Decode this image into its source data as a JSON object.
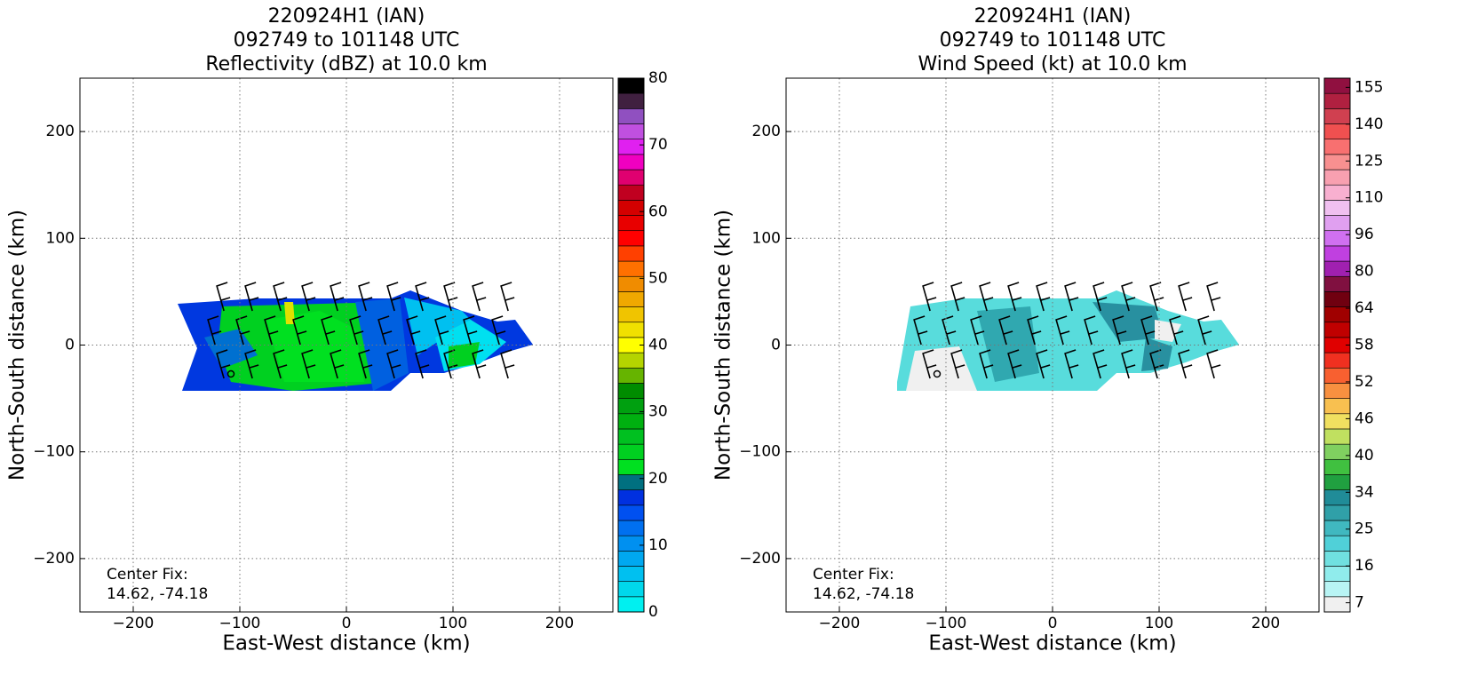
{
  "chart_data": [
    {
      "type": "radar_map",
      "title": [
        "220924H1 (IAN)",
        "092749 to 101148 UTC",
        "Reflectivity (dBZ) at 10.0 km"
      ],
      "xlabel": "East-West distance (km)",
      "ylabel": "North-South distance (km)",
      "xlim": [
        -250,
        250
      ],
      "ylim": [
        -250,
        250
      ],
      "xticks": [
        {
          "value": -200,
          "label": "−200"
        },
        {
          "value": -100,
          "label": "−100"
        },
        0,
        100,
        200
      ],
      "yticks": [
        {
          "value": -200,
          "label": "−200"
        },
        {
          "value": -100,
          "label": "−100"
        },
        0,
        100,
        200
      ],
      "grid": true,
      "annotation": [
        "Center Fix:",
        "14.62, -74.18"
      ],
      "colorbar": {
        "lim": [
          0,
          80
        ],
        "ticks": [
          0,
          10,
          20,
          30,
          40,
          50,
          60,
          70,
          80
        ],
        "colors": [
          "#00f0f0",
          "#00d8ec",
          "#00c0f0",
          "#00a8f0",
          "#0090f0",
          "#0070f0",
          "#0050f0",
          "#0030e0",
          "#007080",
          "#00e020",
          "#00d020",
          "#00c020",
          "#00b010",
          "#00a010",
          "#008c00",
          "#66b400",
          "#b4d400",
          "#ffff00",
          "#f0e000",
          "#f0c400",
          "#f0a800",
          "#f08c00",
          "#ff7000",
          "#ff4000",
          "#ff0000",
          "#e80000",
          "#d40000",
          "#c00020",
          "#e00070",
          "#f000c0",
          "#e020f0",
          "#c050e0",
          "#9050c0",
          "#402040",
          "#000000"
        ]
      }
    },
    {
      "type": "radar_map",
      "title": [
        "220924H1 (IAN)",
        "092749 to 101148 UTC",
        "Wind Speed (kt) at 10.0 km"
      ],
      "xlabel": "East-West distance (km)",
      "ylabel": "North-South distance (km)",
      "xlim": [
        -250,
        250
      ],
      "ylim": [
        -250,
        250
      ],
      "xticks": [
        {
          "value": -200,
          "label": "−200"
        },
        {
          "value": -100,
          "label": "−100"
        },
        0,
        100,
        200
      ],
      "yticks": [
        {
          "value": -200,
          "label": "−200"
        },
        {
          "value": -100,
          "label": "−100"
        },
        0,
        100,
        200
      ],
      "grid": true,
      "annotation": [
        "Center Fix:",
        "14.62, -74.18"
      ],
      "colorbar": {
        "ticks": [
          7,
          16,
          25,
          34,
          40,
          46,
          52,
          58,
          64,
          80,
          96,
          110,
          125,
          140,
          155
        ],
        "colors": [
          "#f0f0f0",
          "#b8f4f4",
          "#90ecec",
          "#70e0e0",
          "#50d0d8",
          "#40b8c0",
          "#30a0a8",
          "#208c98",
          "#20a040",
          "#40c040",
          "#80d060",
          "#c0e060",
          "#f0e060",
          "#f8c050",
          "#f89040",
          "#f86030",
          "#f03020",
          "#e00000",
          "#c00000",
          "#a00000",
          "#700010",
          "#801040",
          "#a020b0",
          "#c040e0",
          "#d070f0",
          "#e0a0f0",
          "#f0c0f0",
          "#f8b0d0",
          "#f8a0b0",
          "#f89090",
          "#f87070",
          "#f05050",
          "#d04050",
          "#b02040",
          "#901040"
        ]
      }
    }
  ]
}
